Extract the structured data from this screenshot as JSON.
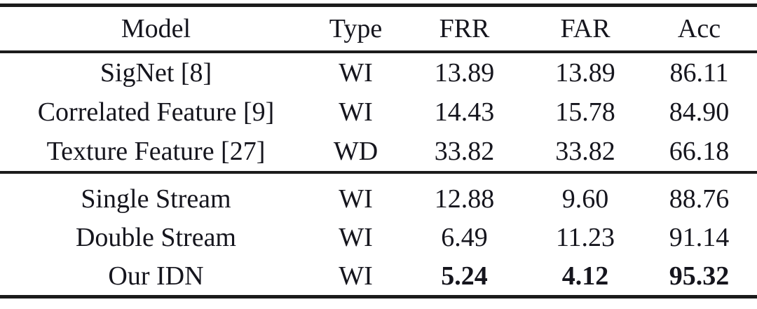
{
  "page": {
    "background_color": "#ffffff",
    "text_color": "#15151d",
    "rule_color": "#1b1b1b"
  },
  "table": {
    "headers": [
      "Model",
      "Type",
      "FRR",
      "FAR",
      "Acc"
    ],
    "sections": [
      {
        "rows": [
          {
            "cells": [
              "SigNet [8]",
              "WI",
              "13.89",
              "13.89",
              "86.11"
            ]
          },
          {
            "cells": [
              "Correlated Feature [9]",
              "WI",
              "14.43",
              "15.78",
              "84.90"
            ]
          },
          {
            "cells": [
              "Texture Feature [27]",
              "WD",
              "33.82",
              "33.82",
              "66.18"
            ]
          }
        ]
      },
      {
        "rows": [
          {
            "cells": [
              "Single Stream",
              "WI",
              "12.88",
              "9.60",
              "88.76"
            ]
          },
          {
            "cells": [
              "Double Stream",
              "WI",
              "6.49",
              "11.23",
              "91.14"
            ]
          },
          {
            "cells": [
              "Our IDN",
              "WI",
              "5.24",
              "4.12",
              "95.32"
            ],
            "bold_metric_values": true
          }
        ]
      }
    ]
  }
}
